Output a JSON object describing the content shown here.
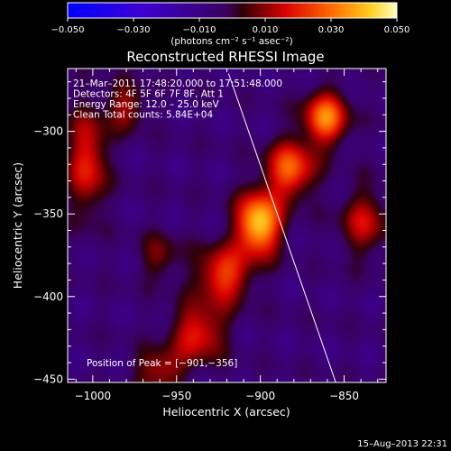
{
  "chart_data": {
    "type": "heatmap",
    "title": "Reconstructed RHESSI Image",
    "xlabel": "Heliocentric X (arcsec)",
    "ylabel": "Heliocentric Y (arcsec)",
    "xlim": [
      -1015,
      -825
    ],
    "ylim": [
      -452,
      -262
    ],
    "x_ticks": [
      -1000,
      -950,
      -900,
      -850
    ],
    "x_tick_labels": [
      "−1000",
      "−950",
      "−900",
      "−850"
    ],
    "y_ticks": [
      -300,
      -350,
      -400,
      -450
    ],
    "y_tick_labels": [
      "−300",
      "−350",
      "−400",
      "−450"
    ],
    "colorbar": {
      "min": -0.05,
      "max": 0.05,
      "ticks": [
        -0.05,
        -0.03,
        -0.01,
        0.01,
        0.03,
        0.05
      ],
      "tick_labels": [
        "−0.050",
        "−0.030",
        "−0.010",
        "0.010",
        "0.030",
        "0.050"
      ],
      "unit_label": "(photons cm⁻² s⁻¹ asec⁻²)"
    },
    "info_lines": [
      "21–Mar–2011 17:48:20.000 to 17:51:48.000",
      "Detectors: 4F 5F 6F 7F 8F, Att 1",
      "Energy Range: 12.0 – 25.0 keV",
      "Clean     Total counts: 5.84E+04"
    ],
    "peak_label": "Position of Peak = [−901,−356]",
    "peak": [
      -901,
      -356
    ],
    "limb_line": [
      [
        -919,
        -265
      ],
      [
        -855,
        -452
      ]
    ],
    "sources": [
      {
        "x": -901,
        "y": -356,
        "sx": 9,
        "sy": 13,
        "value": 0.05
      },
      {
        "x": -882,
        "y": -323,
        "sx": 10,
        "sy": 12,
        "value": 0.034
      },
      {
        "x": -861,
        "y": -292,
        "sx": 9,
        "sy": 11,
        "value": 0.038
      },
      {
        "x": -922,
        "y": -387,
        "sx": 11,
        "sy": 12,
        "value": 0.03
      },
      {
        "x": -937,
        "y": -422,
        "sx": 11,
        "sy": 12,
        "value": 0.026
      },
      {
        "x": -960,
        "y": -445,
        "sx": 10,
        "sy": 9,
        "value": 0.02
      },
      {
        "x": -1003,
        "y": -318,
        "sx": 8,
        "sy": 22,
        "value": 0.026
      },
      {
        "x": -980,
        "y": -285,
        "sx": 8,
        "sy": 10,
        "value": 0.018
      },
      {
        "x": -960,
        "y": -376,
        "sx": 8,
        "sy": 10,
        "value": 0.014
      },
      {
        "x": -838,
        "y": -355,
        "sx": 10,
        "sy": 14,
        "value": 0.02
      }
    ],
    "timestamp": "15–Aug–2013 22:31"
  }
}
